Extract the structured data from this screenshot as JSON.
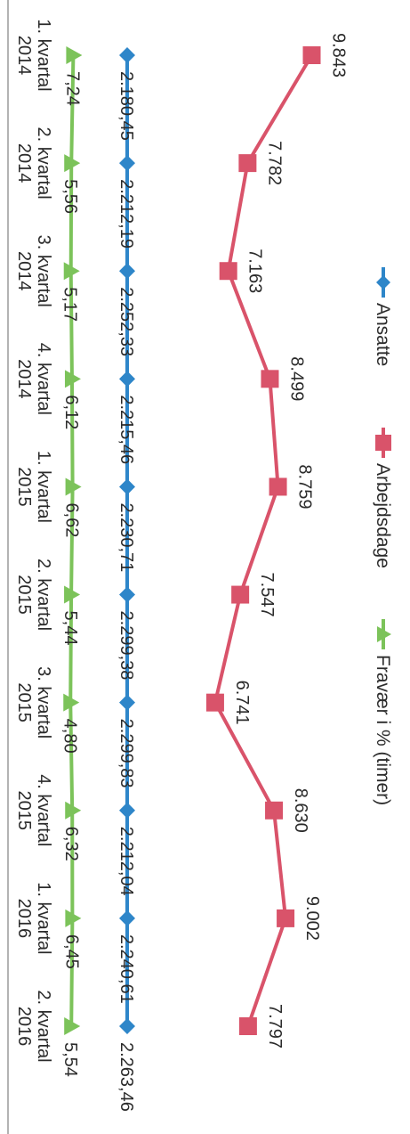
{
  "chart_data": {
    "type": "line",
    "categories": [
      [
        "1. kvartal",
        "2014"
      ],
      [
        "2. kvartal",
        "2014"
      ],
      [
        "3. kvartal",
        "2014"
      ],
      [
        "4. kvartal",
        "2014"
      ],
      [
        "1. kvartal",
        "2015"
      ],
      [
        "2. kvartal",
        "2015"
      ],
      [
        "3. kvartal",
        "2015"
      ],
      [
        "4. kvartal",
        "2015"
      ],
      [
        "1. kvartal",
        "2016"
      ],
      [
        "2. kvartal",
        "2016"
      ]
    ],
    "legend_position": "top",
    "grid": false,
    "series": [
      {
        "name": "Ansatte",
        "color": "#2e86c9",
        "marker": "diamond",
        "values": [
          2180.45,
          2212.19,
          2252.33,
          2215.46,
          2230.71,
          2299.38,
          2299.83,
          2212.04,
          2240.61,
          2263.46
        ],
        "labels": [
          "2.180,45",
          "2.212,19",
          "2.252,33",
          "2.215,46",
          "2.230,71",
          "2.299,38",
          "2.299,83",
          "2.212,04",
          "2.240,61",
          "2.263,46"
        ]
      },
      {
        "name": "Arbejdsdage",
        "color": "#d9536a",
        "marker": "square",
        "values": [
          9843,
          7782,
          7163,
          8499,
          8759,
          7547,
          6741,
          8630,
          9002,
          7797
        ],
        "labels": [
          "9.843",
          "7.782",
          "7.163",
          "8.499",
          "8.759",
          "7.547",
          "6.741",
          "8.630",
          "9.002",
          "7.797"
        ]
      },
      {
        "name": "Fravær i % (timer)",
        "color": "#7cc35a",
        "marker": "triangle",
        "values": [
          7.24,
          5.56,
          5.17,
          6.12,
          6.62,
          5.44,
          4.8,
          6.32,
          6.45,
          5.54
        ],
        "labels": [
          "7,24",
          "5,56",
          "5,17",
          "6,12",
          "6,62",
          "5,44",
          "4,80",
          "6,32",
          "6,45",
          "5,54"
        ]
      }
    ]
  }
}
